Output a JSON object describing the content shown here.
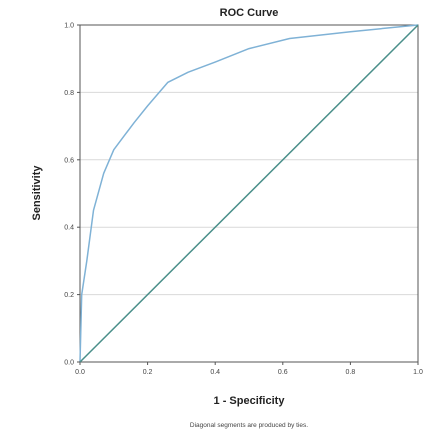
{
  "chart_data": {
    "type": "line",
    "title": "ROC Curve",
    "xlabel": "1 - Specificity",
    "ylabel": "Sensitivity",
    "xlim": [
      0,
      1
    ],
    "ylim": [
      0,
      1
    ],
    "x_ticks": [
      "0.0",
      "0.2",
      "0.4",
      "0.6",
      "0.8",
      "1.0"
    ],
    "y_ticks": [
      "0.0",
      "0.2",
      "0.4",
      "0.6",
      "0.8",
      "1.0"
    ],
    "grid": "horizontal",
    "footnote": "Diagonal segments are produced by ties.",
    "series": [
      {
        "color": "#7fb2d6",
        "points": [
          [
            0.0,
            0.0
          ],
          [
            0.005,
            0.2
          ],
          [
            0.02,
            0.3
          ],
          [
            0.04,
            0.45
          ],
          [
            0.07,
            0.56
          ],
          [
            0.1,
            0.63
          ],
          [
            0.13,
            0.67
          ],
          [
            0.16,
            0.71
          ],
          [
            0.2,
            0.76
          ],
          [
            0.26,
            0.83
          ],
          [
            0.32,
            0.86
          ],
          [
            0.4,
            0.89
          ],
          [
            0.5,
            0.93
          ],
          [
            0.62,
            0.96
          ],
          [
            0.8,
            0.98
          ],
          [
            1.0,
            1.0
          ]
        ]
      },
      {
        "color": "#4a8f8a",
        "points": [
          [
            0.0,
            0.0
          ],
          [
            1.0,
            1.0
          ]
        ]
      }
    ]
  }
}
